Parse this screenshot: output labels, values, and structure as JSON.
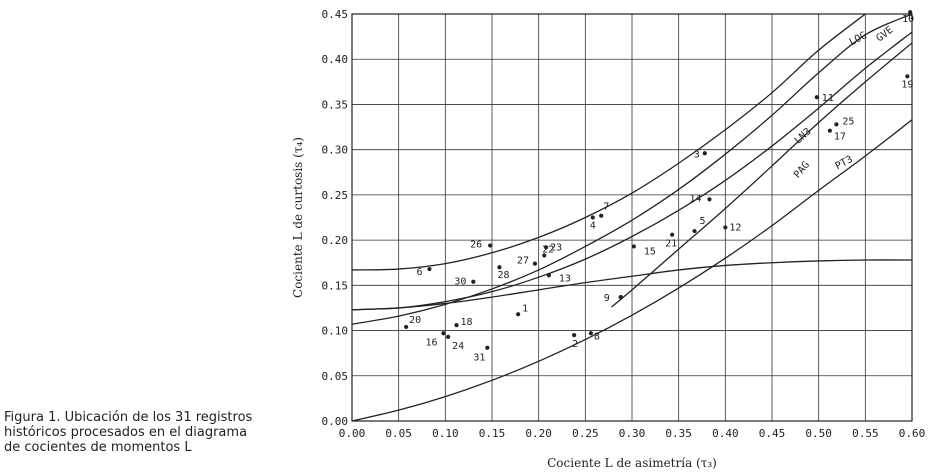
{
  "caption": {
    "lines": [
      "Figura 1. Ubicación de los 31 registros",
      "históricos procesados en el diagrama",
      "de cocientes de momentos L"
    ]
  },
  "chart_data": {
    "type": "scatter",
    "title": "",
    "xlabel": "Cociente L de asimetría (τ₃)",
    "ylabel": "Cociente L de curtosis (τ₄)",
    "xlim": [
      0.0,
      0.6
    ],
    "ylim": [
      0.0,
      0.45
    ],
    "grid": true,
    "x_ticks": [
      "0.00",
      "0.05",
      "0.10",
      "0.15",
      "0.20",
      "0.25",
      "0.30",
      "0.35",
      "0.40",
      "0.45",
      "0.50",
      "0.55",
      "0.60"
    ],
    "y_ticks": [
      "0.00",
      "0.05",
      "0.10",
      "0.15",
      "0.20",
      "0.25",
      "0.30",
      "0.35",
      "0.40",
      "0.45"
    ],
    "points": [
      {
        "label": "1",
        "x": 0.178,
        "y": 0.118
      },
      {
        "label": "2",
        "x": 0.238,
        "y": 0.095
      },
      {
        "label": "3",
        "x": 0.378,
        "y": 0.296
      },
      {
        "label": "4",
        "x": 0.258,
        "y": 0.225
      },
      {
        "label": "5",
        "x": 0.367,
        "y": 0.21
      },
      {
        "label": "6",
        "x": 0.083,
        "y": 0.168
      },
      {
        "label": "7",
        "x": 0.267,
        "y": 0.227
      },
      {
        "label": "8",
        "x": 0.256,
        "y": 0.097
      },
      {
        "label": "9",
        "x": 0.288,
        "y": 0.137
      },
      {
        "label": "10",
        "x": 0.598,
        "y": 0.452
      },
      {
        "label": "11",
        "x": 0.498,
        "y": 0.358
      },
      {
        "label": "12",
        "x": 0.4,
        "y": 0.214
      },
      {
        "label": "13",
        "x": 0.211,
        "y": 0.161
      },
      {
        "label": "14",
        "x": 0.383,
        "y": 0.245
      },
      {
        "label": "15",
        "x": 0.302,
        "y": 0.193
      },
      {
        "label": "16",
        "x": 0.098,
        "y": 0.097
      },
      {
        "label": "17",
        "x": 0.512,
        "y": 0.321
      },
      {
        "label": "18",
        "x": 0.112,
        "y": 0.106
      },
      {
        "label": "19",
        "x": 0.595,
        "y": 0.381
      },
      {
        "label": "20",
        "x": 0.058,
        "y": 0.104
      },
      {
        "label": "21",
        "x": 0.343,
        "y": 0.206
      },
      {
        "label": "22",
        "x": 0.206,
        "y": 0.183
      },
      {
        "label": "23",
        "x": 0.208,
        "y": 0.192
      },
      {
        "label": "24",
        "x": 0.103,
        "y": 0.093
      },
      {
        "label": "25",
        "x": 0.519,
        "y": 0.328
      },
      {
        "label": "26",
        "x": 0.148,
        "y": 0.194
      },
      {
        "label": "27",
        "x": 0.196,
        "y": 0.174
      },
      {
        "label": "28",
        "x": 0.158,
        "y": 0.17
      },
      {
        "label": "29",
        "x": 0.288,
        "y": 0.137
      },
      {
        "label": "30",
        "x": 0.13,
        "y": 0.154
      },
      {
        "label": "31",
        "x": 0.145,
        "y": 0.081
      }
    ],
    "curves": [
      {
        "name": "LOG",
        "points": [
          [
            0,
            0.167
          ],
          [
            0.05,
            0.168
          ],
          [
            0.1,
            0.174
          ],
          [
            0.15,
            0.186
          ],
          [
            0.2,
            0.203
          ],
          [
            0.25,
            0.225
          ],
          [
            0.3,
            0.252
          ],
          [
            0.35,
            0.285
          ],
          [
            0.4,
            0.322
          ],
          [
            0.45,
            0.363
          ],
          [
            0.5,
            0.41
          ],
          [
            0.55,
            0.45
          ]
        ]
      },
      {
        "name": "GVE",
        "points": [
          [
            0,
            0.107
          ],
          [
            0.05,
            0.116
          ],
          [
            0.1,
            0.129
          ],
          [
            0.15,
            0.146
          ],
          [
            0.2,
            0.167
          ],
          [
            0.25,
            0.193
          ],
          [
            0.3,
            0.222
          ],
          [
            0.35,
            0.256
          ],
          [
            0.4,
            0.295
          ],
          [
            0.45,
            0.338
          ],
          [
            0.5,
            0.385
          ],
          [
            0.55,
            0.427
          ],
          [
            0.6,
            0.45
          ]
        ]
      },
      {
        "name": "LN3",
        "points": [
          [
            0,
            0.123
          ],
          [
            0.05,
            0.125
          ],
          [
            0.1,
            0.132
          ],
          [
            0.15,
            0.143
          ],
          [
            0.2,
            0.159
          ],
          [
            0.25,
            0.179
          ],
          [
            0.3,
            0.204
          ],
          [
            0.35,
            0.233
          ],
          [
            0.4,
            0.266
          ],
          [
            0.45,
            0.304
          ],
          [
            0.5,
            0.346
          ],
          [
            0.55,
            0.39
          ],
          [
            0.6,
            0.43
          ]
        ]
      },
      {
        "name": "PAG",
        "points": [
          [
            0,
            0.123
          ],
          [
            0.05,
            0.125
          ],
          [
            0.1,
            0.13
          ],
          [
            0.15,
            0.137
          ],
          [
            0.2,
            0.145
          ],
          [
            0.25,
            0.153
          ],
          [
            0.3,
            0.16
          ],
          [
            0.35,
            0.167
          ],
          [
            0.4,
            0.172
          ],
          [
            0.45,
            0.175
          ],
          [
            0.5,
            0.177
          ],
          [
            0.55,
            0.178
          ],
          [
            0.6,
            0.178
          ]
        ]
      },
      {
        "name": "PT3",
        "points": [
          [
            0,
            0.0
          ],
          [
            0.05,
            0.012
          ],
          [
            0.1,
            0.027
          ],
          [
            0.15,
            0.045
          ],
          [
            0.2,
            0.066
          ],
          [
            0.25,
            0.09
          ],
          [
            0.3,
            0.117
          ],
          [
            0.35,
            0.147
          ],
          [
            0.4,
            0.18
          ],
          [
            0.45,
            0.216
          ],
          [
            0.5,
            0.255
          ],
          [
            0.55,
            0.293
          ],
          [
            0.6,
            0.333
          ]
        ]
      },
      {
        "name": "",
        "points": [
          [
            0.278,
            0.126
          ],
          [
            0.3,
            0.145
          ],
          [
            0.35,
            0.19
          ],
          [
            0.4,
            0.235
          ],
          [
            0.45,
            0.282
          ],
          [
            0.5,
            0.33
          ],
          [
            0.55,
            0.375
          ],
          [
            0.6,
            0.418
          ]
        ]
      }
    ]
  }
}
